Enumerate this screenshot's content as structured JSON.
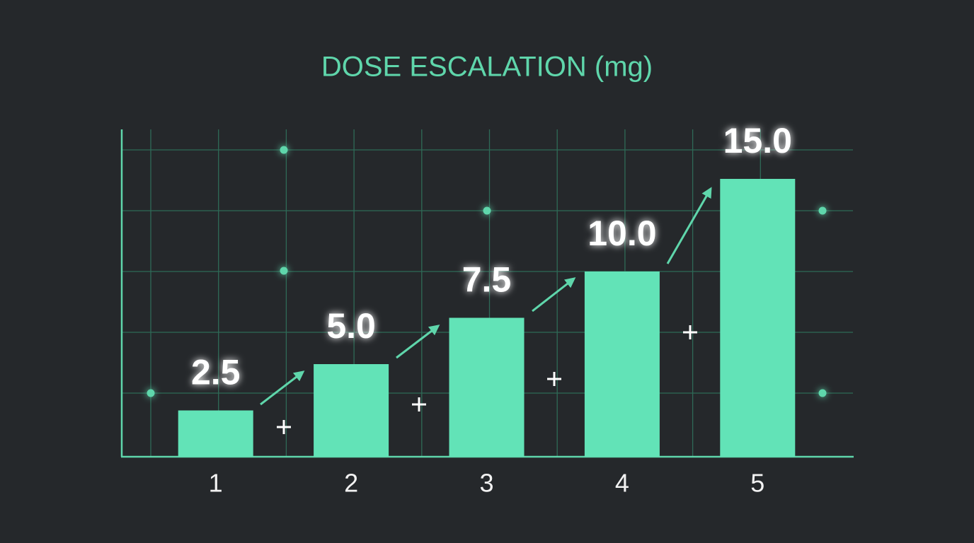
{
  "chart_data": {
    "type": "bar",
    "title": "DOSE ESCALATION (mg)",
    "categories": [
      "1",
      "2",
      "3",
      "4",
      "5"
    ],
    "values": [
      2.5,
      5,
      7.5,
      10,
      15
    ],
    "value_labels": [
      "2.5",
      "5.0",
      "7.5",
      "10.0",
      "15.0"
    ],
    "color": "#62e3b7",
    "ylim": [
      0,
      17.5
    ]
  }
}
